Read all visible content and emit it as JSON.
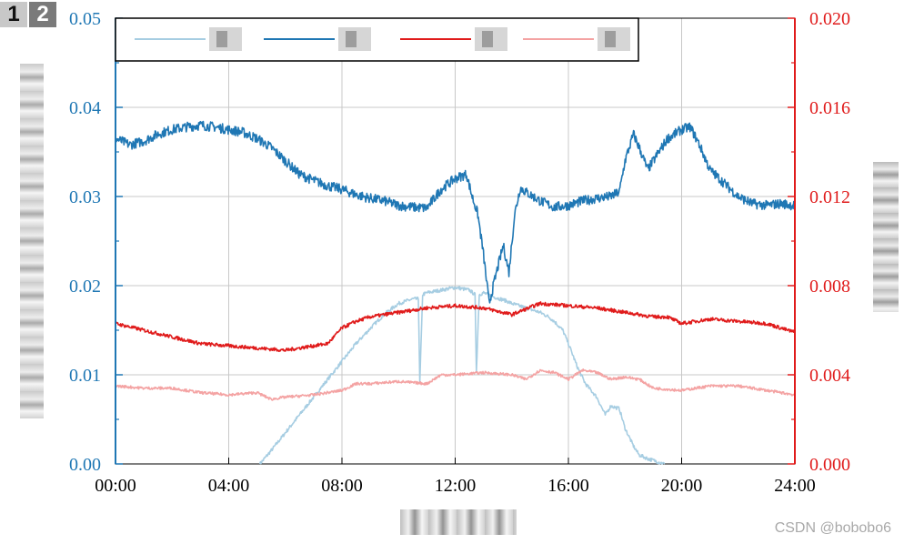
{
  "badges": [
    "1",
    "2"
  ],
  "watermark": "CSDN @bobobo6",
  "chart_data": {
    "type": "line",
    "grid": true,
    "legend_position": "top",
    "x_ticks": [
      "00:00",
      "04:00",
      "08:00",
      "12:00",
      "16:00",
      "20:00",
      "24:00"
    ],
    "xlim": [
      0,
      24
    ],
    "left_axis": {
      "color": "#1f77b4",
      "ylim": [
        0,
        0.05
      ],
      "ticks": [
        "0.00",
        "0.01",
        "0.02",
        "0.03",
        "0.04",
        "0.05"
      ]
    },
    "right_axis": {
      "color": "#e01b1b",
      "ylim": [
        0,
        0.02
      ],
      "ticks": [
        "0.000",
        "0.004",
        "0.008",
        "0.012",
        "0.016",
        "0.020"
      ]
    },
    "series": [
      {
        "axis": "left",
        "color": "#a6cde2",
        "x": [
          5.1,
          5.5,
          6.0,
          6.5,
          7.0,
          7.5,
          8.0,
          8.5,
          9.0,
          9.5,
          10.0,
          10.5,
          10.7,
          10.75,
          10.85,
          11.0,
          11.5,
          12.0,
          12.5,
          12.7,
          12.75,
          12.85,
          13.0,
          13.3,
          13.5,
          13.8,
          14.0,
          14.5,
          14.8,
          15.0,
          15.3,
          15.5,
          15.8,
          16.0,
          16.3,
          16.6,
          17.0,
          17.3,
          17.5,
          17.8,
          18.0,
          18.3,
          18.5,
          18.8,
          19.0,
          19.4
        ],
        "y": [
          0.0,
          0.0015,
          0.0035,
          0.0055,
          0.0075,
          0.0095,
          0.0115,
          0.0135,
          0.0152,
          0.0168,
          0.018,
          0.0185,
          0.0185,
          0.009,
          0.019,
          0.0192,
          0.0195,
          0.0198,
          0.0195,
          0.019,
          0.0105,
          0.019,
          0.0192,
          0.0188,
          0.0186,
          0.0183,
          0.018,
          0.0175,
          0.0172,
          0.017,
          0.0165,
          0.016,
          0.015,
          0.0135,
          0.011,
          0.009,
          0.0075,
          0.0055,
          0.0065,
          0.0062,
          0.004,
          0.002,
          0.001,
          0.0006,
          0.0004,
          0.0
        ]
      },
      {
        "axis": "left",
        "color": "#1f77b4",
        "x": [
          0.0,
          0.5,
          1.0,
          1.5,
          2.0,
          2.5,
          3.0,
          3.5,
          4.0,
          4.5,
          5.0,
          5.5,
          6.0,
          6.5,
          7.0,
          7.5,
          8.0,
          8.5,
          9.0,
          9.5,
          10.0,
          10.5,
          11.0,
          11.5,
          12.0,
          12.4,
          12.6,
          12.8,
          13.0,
          13.2,
          13.5,
          13.7,
          13.9,
          14.1,
          14.3,
          14.5,
          15.0,
          15.5,
          16.0,
          16.5,
          17.0,
          17.5,
          17.8,
          18.0,
          18.3,
          18.5,
          18.8,
          19.0,
          19.5,
          20.0,
          20.3,
          20.6,
          21.0,
          21.5,
          22.0,
          22.5,
          23.0,
          23.5,
          24.0
        ],
        "y": [
          0.0365,
          0.0358,
          0.0362,
          0.037,
          0.0375,
          0.0378,
          0.038,
          0.0378,
          0.0375,
          0.0372,
          0.0365,
          0.0355,
          0.034,
          0.0325,
          0.0318,
          0.0312,
          0.0308,
          0.0302,
          0.0298,
          0.0295,
          0.029,
          0.0288,
          0.0287,
          0.0308,
          0.032,
          0.0325,
          0.03,
          0.028,
          0.0235,
          0.018,
          0.022,
          0.0245,
          0.0215,
          0.028,
          0.031,
          0.0305,
          0.0295,
          0.0288,
          0.029,
          0.0295,
          0.0298,
          0.03,
          0.0305,
          0.034,
          0.037,
          0.0355,
          0.033,
          0.034,
          0.0365,
          0.0375,
          0.0378,
          0.036,
          0.033,
          0.0315,
          0.03,
          0.0292,
          0.029,
          0.0292,
          0.029
        ]
      },
      {
        "axis": "right",
        "color": "#e01b1b",
        "x": [
          0.0,
          1.0,
          2.0,
          3.0,
          4.0,
          5.0,
          6.0,
          7.0,
          7.5,
          8.0,
          8.5,
          9.0,
          10.0,
          11.0,
          12.0,
          13.0,
          14.0,
          15.0,
          16.0,
          17.0,
          18.0,
          19.0,
          19.5,
          20.0,
          21.0,
          22.0,
          23.0,
          24.0
        ],
        "y": [
          0.0063,
          0.006,
          0.0057,
          0.0054,
          0.0053,
          0.0052,
          0.0051,
          0.0053,
          0.0054,
          0.0061,
          0.0064,
          0.0066,
          0.0068,
          0.007,
          0.0071,
          0.007,
          0.0067,
          0.0072,
          0.0071,
          0.007,
          0.0068,
          0.0066,
          0.0066,
          0.0063,
          0.0065,
          0.0064,
          0.0063,
          0.0059
        ]
      },
      {
        "axis": "right",
        "color": "#f4a3a3",
        "x": [
          0.0,
          1.0,
          2.0,
          3.0,
          4.0,
          5.0,
          5.5,
          6.0,
          7.0,
          8.0,
          8.5,
          9.0,
          10.0,
          11.0,
          11.5,
          12.0,
          13.0,
          14.0,
          14.5,
          15.0,
          15.5,
          16.0,
          16.5,
          17.0,
          17.5,
          18.0,
          18.5,
          19.0,
          20.0,
          21.0,
          22.0,
          23.0,
          24.0
        ],
        "y": [
          0.0035,
          0.0034,
          0.0034,
          0.0032,
          0.0031,
          0.0032,
          0.0029,
          0.003,
          0.0031,
          0.0033,
          0.0036,
          0.0036,
          0.0037,
          0.0036,
          0.004,
          0.004,
          0.0041,
          0.004,
          0.0038,
          0.0042,
          0.0041,
          0.0038,
          0.0042,
          0.0041,
          0.0038,
          0.0039,
          0.0038,
          0.0034,
          0.0033,
          0.0035,
          0.0035,
          0.0033,
          0.0031
        ]
      }
    ]
  }
}
